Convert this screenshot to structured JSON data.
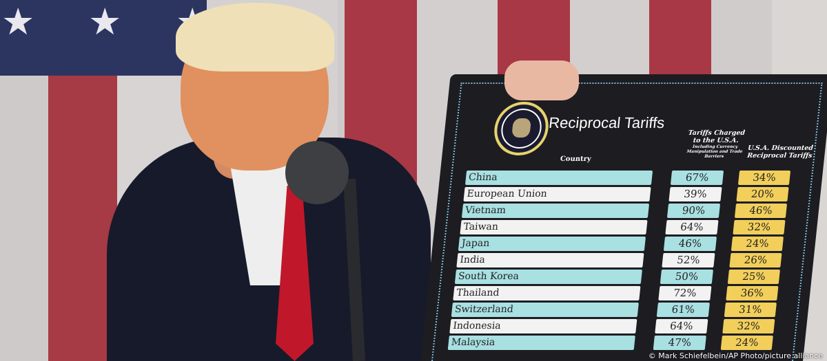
{
  "board": {
    "title": "Reciprocal Tariffs",
    "seal": "Seal of the President of the United States",
    "headers": {
      "country": "Country",
      "charged": "Tariffs Charged to the U.S.A.",
      "charged_note": "Including Currency Manipulation and Trade Barriers",
      "discounted": "U.S.A. Discounted Reciprocal Tariffs"
    },
    "rows": [
      {
        "country": "China",
        "charged": "67%",
        "discounted": "34%"
      },
      {
        "country": "European Union",
        "charged": "39%",
        "discounted": "20%"
      },
      {
        "country": "Vietnam",
        "charged": "90%",
        "discounted": "46%"
      },
      {
        "country": "Taiwan",
        "charged": "64%",
        "discounted": "32%"
      },
      {
        "country": "Japan",
        "charged": "46%",
        "discounted": "24%"
      },
      {
        "country": "India",
        "charged": "52%",
        "discounted": "26%"
      },
      {
        "country": "South Korea",
        "charged": "50%",
        "discounted": "25%"
      },
      {
        "country": "Thailand",
        "charged": "72%",
        "discounted": "36%"
      },
      {
        "country": "Switzerland",
        "charged": "61%",
        "discounted": "31%"
      },
      {
        "country": "Indonesia",
        "charged": "64%",
        "discounted": "32%"
      },
      {
        "country": "Malaysia",
        "charged": "47%",
        "discounted": "24%"
      }
    ]
  },
  "credit": "© Mark Schiefelbein/AP Photo/picture alliance",
  "colors": {
    "teal_row": "#a9e0e2",
    "white_row": "#f2f2f2",
    "gold_cell": "#f2cf5b",
    "board": "#1d1d21",
    "tie": "#c0182a"
  }
}
